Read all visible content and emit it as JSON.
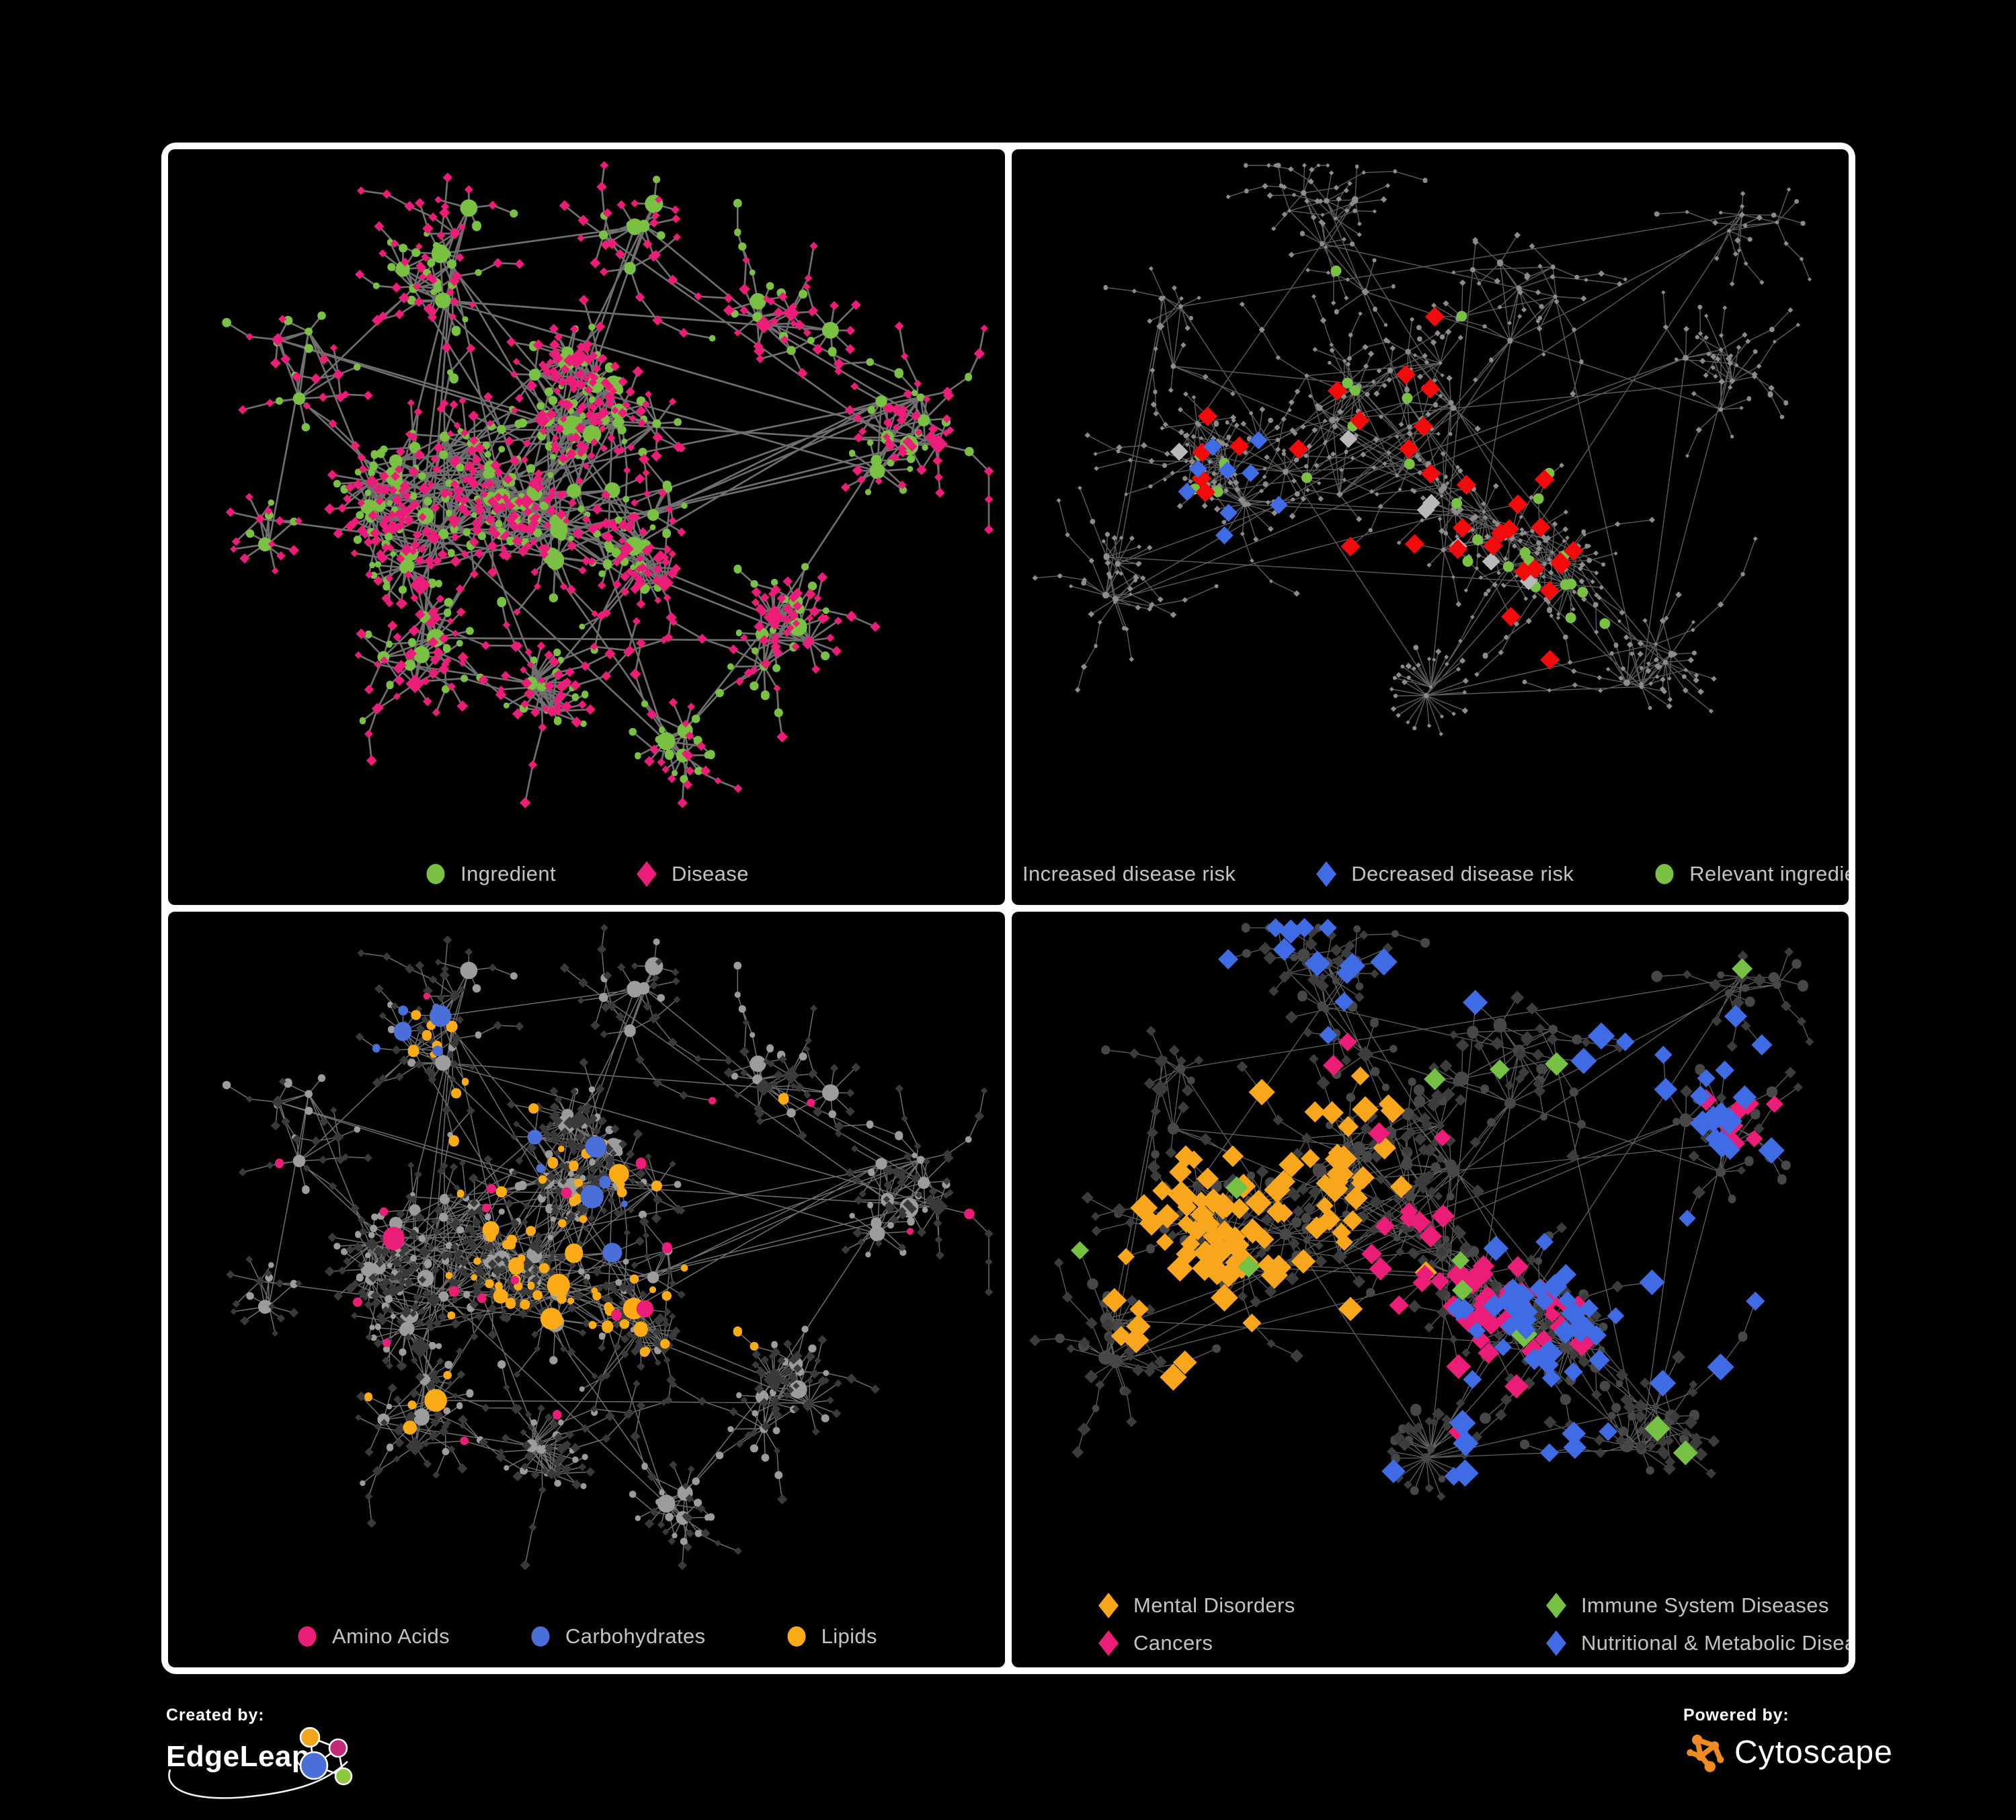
{
  "poster": {
    "background": "#000000",
    "frame_color": "#ffffff",
    "legend_text_color": "#c3c3c3"
  },
  "panels": [
    {
      "legend": [
        {
          "label": "Ingredient",
          "shape": "circle",
          "color": "#7ac143"
        },
        {
          "label": "Disease",
          "shape": "diamond",
          "color": "#ec1d78"
        }
      ],
      "palette": {
        "edge": "#757575",
        "circle": "#7ac143",
        "diamond": "#ec1d78"
      }
    },
    {
      "legend": [
        {
          "label": "Increased disease risk",
          "shape": "diamond",
          "color": "#f30b0b"
        },
        {
          "label": "Decreased disease risk",
          "shape": "diamond",
          "color": "#3f6ce4"
        },
        {
          "label": "Relevant ingredient",
          "shape": "circle",
          "color": "#7ac143"
        }
      ],
      "palette": {
        "edge": "#616161",
        "node": "#8c8c8c",
        "silver": "#b9b9b9"
      }
    },
    {
      "legend": [
        {
          "label": "Amino Acids",
          "shape": "circle",
          "color": "#ec1d78"
        },
        {
          "label": "Carbohydrates",
          "shape": "circle",
          "color": "#4a6fd8"
        },
        {
          "label": "Lipids",
          "shape": "circle",
          "color": "#fbab16"
        }
      ],
      "palette": {
        "edge": "#949494",
        "circle": "#9c9c9c",
        "diamond": "#3a3a3a"
      }
    },
    {
      "legend": [
        {
          "label": "Mental Disorders",
          "shape": "diamond",
          "color": "#f8a71d"
        },
        {
          "label": "Cancers",
          "shape": "diamond",
          "color": "#ec1d78"
        },
        {
          "label": "Immune System Diseases",
          "shape": "diamond",
          "color": "#76c043"
        },
        {
          "label": "Nutritional & Metabolic Diseases",
          "shape": "diamond",
          "color": "#3f6ce4"
        }
      ],
      "palette": {
        "edge": "#787878",
        "circle": "#474747",
        "diamond": "#3c3c3c"
      }
    }
  ],
  "footer": {
    "created_by_label": "Created by:",
    "edgeleap_text": "EdgeLeap",
    "powered_by_label": "Powered by:",
    "cytoscape_text": "Cytoscape",
    "cytoscape_orange": "#ef8b22",
    "edgeleap_colors": {
      "orange": "#f2a51b",
      "pink": "#c52874",
      "blue": "#4a6fd8",
      "green": "#8dc63f"
    }
  }
}
